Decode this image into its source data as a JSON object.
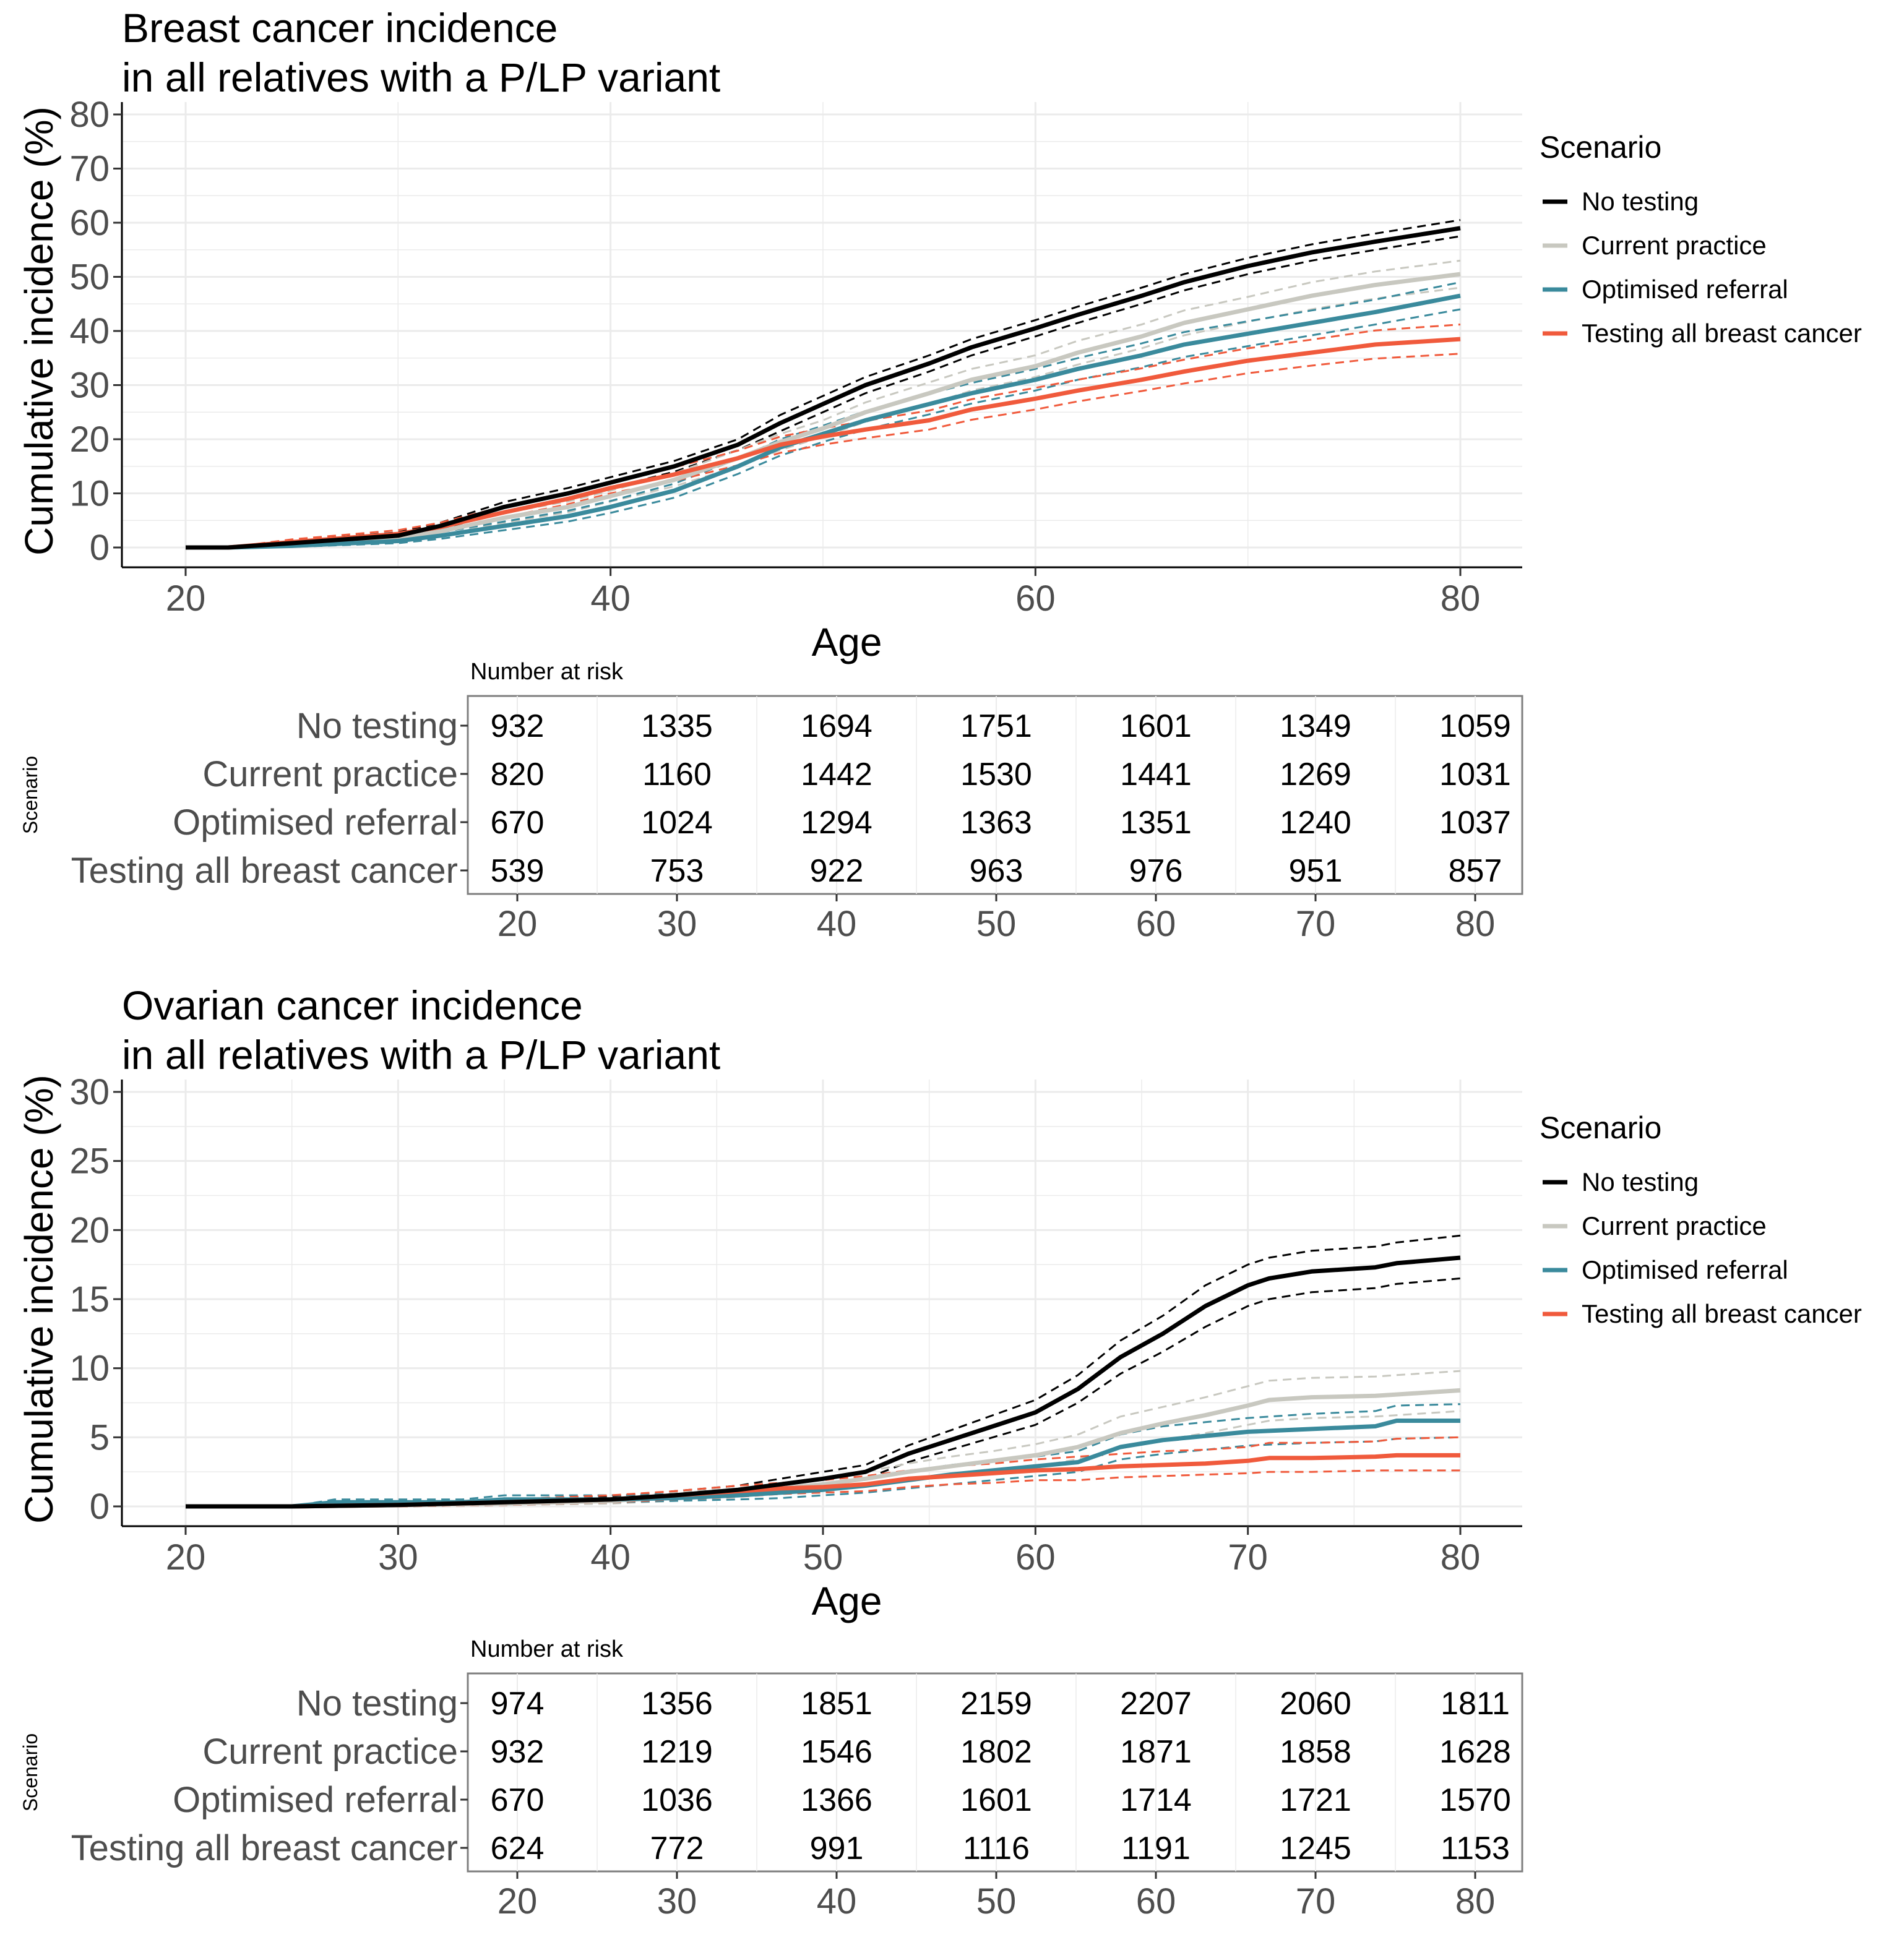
{
  "colors": {
    "no_testing": "#000000",
    "current_practice": "#c8c8c0",
    "optimised_referral": "#3a8a9c",
    "testing_all": "#f05a3c",
    "grid": "#ebebeb",
    "axis_text": "#4d4d4d",
    "table_border": "#7f7f7f"
  },
  "chart_data": [
    {
      "type": "line",
      "title": "Breast cancer incidence",
      "subtitle": "in all relatives with a P/LP variant",
      "xlabel": "Age",
      "ylabel": "Cumulative incidence (%)",
      "xlim": [
        20,
        80
      ],
      "ylim": [
        0,
        80
      ],
      "xticks": [
        20,
        40,
        60,
        80
      ],
      "xtick_labels": [
        "20",
        "40",
        "60",
        "80"
      ],
      "yticks": [
        0,
        10,
        20,
        30,
        40,
        50,
        60,
        70,
        80
      ],
      "ytick_labels": [
        "0",
        "10",
        "20",
        "30",
        "40",
        "50",
        "60",
        "70",
        "80"
      ],
      "grid": true,
      "legend": {
        "title": "Scenario",
        "position": "right",
        "entries": [
          "No testing",
          "Current practice",
          "Optimised referral",
          "Testing all breast cancer"
        ]
      },
      "series": [
        {
          "name": "No testing",
          "color_key": "no_testing",
          "x": [
            20,
            22,
            25,
            30,
            32,
            35,
            38,
            40,
            43,
            46,
            48,
            50,
            52,
            55,
            57,
            60,
            62,
            65,
            67,
            70,
            73,
            76,
            80
          ],
          "values": [
            0,
            0,
            0.8,
            2.2,
            4,
            7.5,
            10,
            12,
            15,
            19,
            23,
            26.5,
            30,
            34,
            37,
            40.5,
            43,
            46.5,
            49,
            52,
            54.5,
            56.5,
            59
          ],
          "lower": [
            0,
            0,
            0.4,
            1.6,
            3.4,
            6.6,
            9,
            11,
            14,
            18,
            21.5,
            25,
            28.5,
            32.5,
            35.5,
            39,
            41.5,
            45,
            47.5,
            50.5,
            53,
            55,
            57.5
          ],
          "upper": [
            0,
            0,
            1.2,
            2.8,
            4.6,
            8.4,
            11,
            13,
            16,
            20,
            24.5,
            28,
            31.5,
            35.5,
            38.5,
            42,
            44.5,
            48,
            50.5,
            53.5,
            56,
            58,
            60.5
          ]
        },
        {
          "name": "Current practice",
          "color_key": "current_practice",
          "x": [
            20,
            22,
            25,
            30,
            32,
            35,
            38,
            40,
            43,
            46,
            48,
            50,
            52,
            55,
            57,
            60,
            62,
            65,
            67,
            70,
            73,
            76,
            80
          ],
          "values": [
            0,
            0,
            0.5,
            1.8,
            3,
            5.5,
            7.5,
            9.5,
            12.5,
            16.5,
            19.5,
            22,
            25,
            28.5,
            31,
            33.5,
            36,
            39,
            41.5,
            44,
            46.5,
            48.5,
            50.5
          ],
          "lower": [
            0,
            0,
            0.2,
            1.2,
            2.3,
            4.6,
            6.5,
            8.5,
            11.3,
            15,
            18,
            20.5,
            23.2,
            26.5,
            29,
            31.5,
            33.8,
            36.8,
            39.2,
            41.7,
            44,
            46,
            48
          ],
          "upper": [
            0,
            0,
            0.8,
            2.4,
            3.7,
            6.4,
            8.5,
            10.5,
            13.7,
            18,
            21,
            23.5,
            26.8,
            30.5,
            33,
            35.5,
            38.2,
            41.2,
            43.8,
            46.3,
            49,
            51,
            53
          ]
        },
        {
          "name": "Optimised referral",
          "color_key": "optimised_referral",
          "x": [
            20,
            22,
            25,
            30,
            32,
            35,
            38,
            40,
            43,
            46,
            48,
            50,
            52,
            55,
            57,
            60,
            62,
            65,
            67,
            70,
            73,
            76,
            80
          ],
          "values": [
            0,
            0,
            0.3,
            1.2,
            2.2,
            4,
            5.8,
            7.5,
            10.5,
            15,
            18.5,
            21,
            23.5,
            26.5,
            28.5,
            31,
            33,
            35.5,
            37.5,
            39.5,
            41.5,
            43.5,
            46.5
          ],
          "lower": [
            0,
            0,
            0.1,
            0.8,
            1.6,
            3.2,
            4.8,
            6.4,
            9.2,
            13.6,
            17,
            19.5,
            21.8,
            24.6,
            26.6,
            29,
            31,
            33.3,
            35.2,
            37.2,
            39.2,
            41.2,
            44
          ],
          "upper": [
            0,
            0,
            0.5,
            1.6,
            2.8,
            4.8,
            6.8,
            8.6,
            11.8,
            16.4,
            20,
            22.5,
            25.2,
            28.4,
            30.4,
            33,
            35,
            37.7,
            39.8,
            41.8,
            43.8,
            45.8,
            49
          ]
        },
        {
          "name": "Testing all breast cancer",
          "color_key": "testing_all",
          "x": [
            20,
            22,
            25,
            30,
            32,
            35,
            38,
            40,
            43,
            46,
            48,
            50,
            52,
            55,
            57,
            60,
            62,
            65,
            67,
            70,
            73,
            76,
            80
          ],
          "values": [
            0,
            0,
            1,
            2.5,
            3.8,
            6.5,
            9,
            11,
            13.5,
            16.5,
            19,
            20.5,
            21.8,
            23.5,
            25.5,
            27.5,
            29,
            31,
            32.5,
            34.5,
            36,
            37.5,
            38.5
          ],
          "lower": [
            0,
            0,
            0.5,
            1.9,
            3.1,
            5.6,
            8,
            10,
            12.3,
            15.2,
            17.5,
            19,
            20.2,
            21.8,
            23.6,
            25.5,
            27,
            28.9,
            30.3,
            32.2,
            33.6,
            34.9,
            35.8
          ],
          "upper": [
            0,
            0,
            1.5,
            3.2,
            4.6,
            7.6,
            10.2,
            12.2,
            14.8,
            17.9,
            20.5,
            22,
            23.4,
            25.3,
            27.4,
            29.5,
            31,
            33.1,
            34.7,
            36.8,
            38.4,
            40.1,
            41.2
          ]
        }
      ],
      "risk_table": {
        "title": "Number at risk",
        "axis_label": "Scenario",
        "rows": [
          "No testing",
          "Current practice",
          "Optimised referral",
          "Testing all breast cancer"
        ],
        "x": [
          20,
          30,
          40,
          50,
          60,
          70,
          80
        ],
        "x_labels": [
          "20",
          "30",
          "40",
          "50",
          "60",
          "70",
          "80"
        ],
        "values": [
          [
            "932",
            "1335",
            "1694",
            "1751",
            "1601",
            "1349",
            "1059"
          ],
          [
            "820",
            "1160",
            "1442",
            "1530",
            "1441",
            "1269",
            "1031"
          ],
          [
            "670",
            "1024",
            "1294",
            "1363",
            "1351",
            "1240",
            "1037"
          ],
          [
            "539",
            "753",
            "922",
            "963",
            "976",
            "951",
            "857"
          ]
        ]
      }
    },
    {
      "type": "line",
      "title": "Ovarian cancer incidence",
      "subtitle": "in all relatives with a P/LP variant",
      "xlabel": "Age",
      "ylabel": "Cumulative incidence (%)",
      "xlim": [
        20,
        80
      ],
      "ylim": [
        0,
        30
      ],
      "xticks": [
        20,
        30,
        40,
        50,
        60,
        70,
        80
      ],
      "xtick_labels": [
        "20",
        "30",
        "40",
        "50",
        "60",
        "70",
        "80"
      ],
      "yticks": [
        0,
        5,
        10,
        15,
        20,
        25,
        30
      ],
      "ytick_labels": [
        "0",
        "5",
        "10",
        "15",
        "20",
        "25",
        "30"
      ],
      "grid": true,
      "legend": {
        "title": "Scenario",
        "position": "right",
        "entries": [
          "No testing",
          "Current practice",
          "Optimised referral",
          "Testing all breast cancer"
        ]
      },
      "series": [
        {
          "name": "No testing",
          "color_key": "no_testing",
          "x": [
            20,
            25,
            30,
            35,
            40,
            43,
            46,
            48,
            50,
            52,
            54,
            56,
            58,
            60,
            62,
            64,
            66,
            68,
            70,
            71,
            73,
            76,
            77,
            80
          ],
          "values": [
            0,
            0,
            0.1,
            0.3,
            0.5,
            0.8,
            1.2,
            1.6,
            2,
            2.5,
            3.8,
            4.8,
            5.8,
            6.8,
            8.5,
            10.8,
            12.5,
            14.5,
            16,
            16.5,
            17,
            17.3,
            17.6,
            18
          ],
          "lower": [
            0,
            0,
            0,
            0.1,
            0.3,
            0.5,
            0.9,
            1.2,
            1.5,
            2,
            3.2,
            4.1,
            5,
            5.9,
            7.5,
            9.6,
            11.2,
            13,
            14.5,
            15,
            15.5,
            15.8,
            16.1,
            16.5
          ],
          "upper": [
            0,
            0,
            0.2,
            0.5,
            0.7,
            1.1,
            1.5,
            2,
            2.5,
            3,
            4.4,
            5.5,
            6.6,
            7.7,
            9.5,
            12,
            13.8,
            16,
            17.5,
            18,
            18.5,
            18.8,
            19.1,
            19.6
          ]
        },
        {
          "name": "Current practice",
          "color_key": "current_practice",
          "x": [
            20,
            25,
            30,
            35,
            40,
            43,
            46,
            48,
            50,
            52,
            54,
            56,
            58,
            60,
            62,
            64,
            66,
            68,
            70,
            71,
            73,
            76,
            77,
            80
          ],
          "values": [
            0,
            0,
            0.1,
            0.2,
            0.4,
            0.7,
            1,
            1.3,
            1.6,
            2,
            2.5,
            2.9,
            3.3,
            3.7,
            4.3,
            5.3,
            6,
            6.6,
            7.3,
            7.7,
            7.9,
            8,
            8.1,
            8.4
          ],
          "lower": [
            0,
            0,
            0,
            0.1,
            0.2,
            0.4,
            0.7,
            0.9,
            1.2,
            1.5,
            1.9,
            2.3,
            2.6,
            2.9,
            3.4,
            4.2,
            4.8,
            5.3,
            5.9,
            6.2,
            6.4,
            6.5,
            6.6,
            6.9
          ],
          "upper": [
            0,
            0,
            0.2,
            0.4,
            0.6,
            1,
            1.3,
            1.7,
            2,
            2.5,
            3.1,
            3.6,
            4,
            4.5,
            5.2,
            6.5,
            7.2,
            7.9,
            8.7,
            9.1,
            9.3,
            9.4,
            9.5,
            9.8
          ]
        },
        {
          "name": "Optimised referral",
          "color_key": "optimised_referral",
          "x": [
            20,
            25,
            27,
            30,
            33,
            35,
            40,
            43,
            46,
            48,
            50,
            52,
            54,
            56,
            58,
            60,
            62,
            64,
            66,
            68,
            70,
            73,
            76,
            77,
            80
          ],
          "values": [
            0,
            0,
            0.3,
            0.3,
            0.3,
            0.5,
            0.5,
            0.6,
            0.8,
            1,
            1.2,
            1.5,
            1.9,
            2.3,
            2.6,
            2.9,
            3.2,
            4.3,
            4.8,
            5.1,
            5.4,
            5.6,
            5.8,
            6.2,
            6.2
          ],
          "lower": [
            0,
            0,
            0.1,
            0.1,
            0.1,
            0.3,
            0.3,
            0.4,
            0.5,
            0.6,
            0.8,
            1,
            1.3,
            1.6,
            1.9,
            2.2,
            2.5,
            3.4,
            3.8,
            4.1,
            4.4,
            4.6,
            4.7,
            4.9,
            5
          ],
          "upper": [
            0,
            0,
            0.5,
            0.5,
            0.5,
            0.8,
            0.8,
            0.9,
            1.1,
            1.4,
            1.6,
            2,
            2.5,
            3,
            3.3,
            3.6,
            4,
            5.2,
            5.8,
            6.1,
            6.4,
            6.7,
            6.9,
            7.3,
            7.4
          ]
        },
        {
          "name": "Testing all breast cancer",
          "color_key": "testing_all",
          "x": [
            20,
            25,
            30,
            35,
            40,
            43,
            46,
            48,
            50,
            52,
            54,
            56,
            58,
            60,
            62,
            64,
            66,
            68,
            70,
            71,
            73,
            76,
            77,
            80
          ],
          "values": [
            0,
            0,
            0.1,
            0.3,
            0.5,
            0.8,
            1.1,
            1.3,
            1.4,
            1.6,
            2,
            2.2,
            2.4,
            2.6,
            2.7,
            2.9,
            3,
            3.1,
            3.3,
            3.5,
            3.5,
            3.6,
            3.7,
            3.7
          ],
          "lower": [
            0,
            0,
            0,
            0.1,
            0.3,
            0.5,
            0.7,
            0.9,
            1,
            1.1,
            1.4,
            1.6,
            1.7,
            1.9,
            1.9,
            2.1,
            2.2,
            2.3,
            2.4,
            2.5,
            2.5,
            2.6,
            2.6,
            2.6
          ],
          "upper": [
            0,
            0,
            0.2,
            0.5,
            0.8,
            1.1,
            1.5,
            1.7,
            1.9,
            2.2,
            2.6,
            2.9,
            3.1,
            3.4,
            3.6,
            3.8,
            4,
            4.1,
            4.3,
            4.6,
            4.6,
            4.7,
            4.9,
            5
          ]
        }
      ],
      "risk_table": {
        "title": "Number at risk",
        "axis_label": "Scenario",
        "rows": [
          "No testing",
          "Current practice",
          "Optimised referral",
          "Testing all breast cancer"
        ],
        "x": [
          20,
          30,
          40,
          50,
          60,
          70,
          80
        ],
        "x_labels": [
          "20",
          "30",
          "40",
          "50",
          "60",
          "70",
          "80"
        ],
        "values": [
          [
            "974",
            "1356",
            "1851",
            "2159",
            "2207",
            "2060",
            "1811"
          ],
          [
            "932",
            "1219",
            "1546",
            "1802",
            "1871",
            "1858",
            "1628"
          ],
          [
            "670",
            "1036",
            "1366",
            "1601",
            "1714",
            "1721",
            "1570"
          ],
          [
            "624",
            "772",
            "991",
            "1116",
            "1191",
            "1245",
            "1153"
          ]
        ]
      }
    }
  ]
}
